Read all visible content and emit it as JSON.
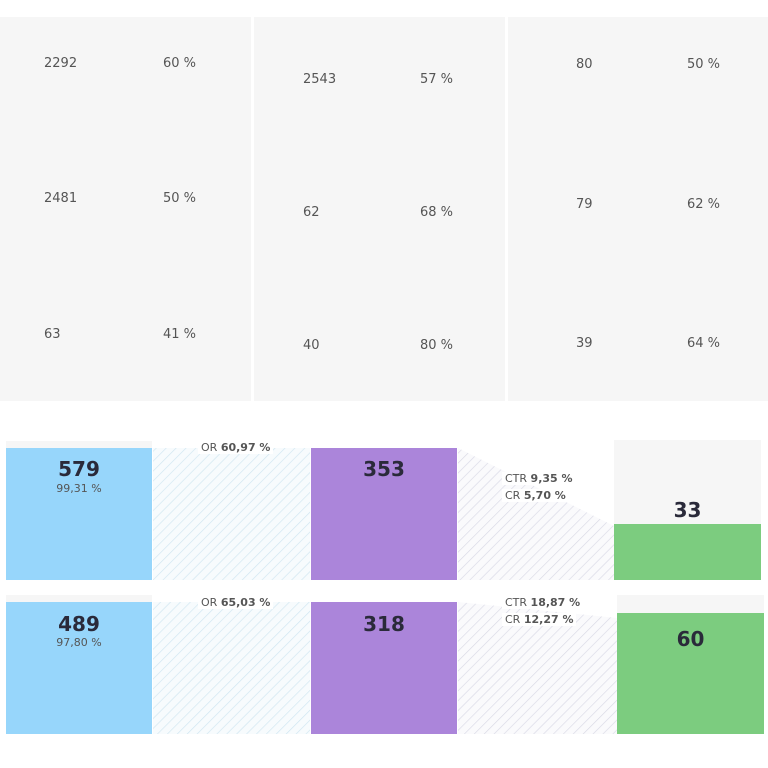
{
  "stats": {
    "columns": [
      {
        "rows": [
          {
            "value": "2292",
            "pct": "60 %"
          },
          {
            "value": "2481",
            "pct": "50 %"
          },
          {
            "value": "63",
            "pct": "41 %"
          }
        ]
      },
      {
        "rows": [
          {
            "value": "2543",
            "pct": "57 %"
          },
          {
            "value": "62",
            "pct": "68 %"
          },
          {
            "value": "40",
            "pct": "80 %"
          }
        ]
      },
      {
        "rows": [
          {
            "value": "80",
            "pct": "50 %"
          },
          {
            "value": "79",
            "pct": "62 %"
          },
          {
            "value": "39",
            "pct": "64 %"
          }
        ]
      }
    ]
  },
  "funnels": [
    {
      "stage1": {
        "value": "579",
        "sub": "99,31 %"
      },
      "or_label": "OR",
      "or_value": "60,97 %",
      "stage2": {
        "value": "353"
      },
      "ctr_label": "CTR",
      "ctr_value": "9,35 %",
      "cr_label": "CR",
      "cr_value": "5,70 %",
      "stage3": {
        "value": "33",
        "fill_fraction": 0.4
      }
    },
    {
      "stage1": {
        "value": "489",
        "sub": "97,80 %"
      },
      "or_label": "OR",
      "or_value": "65,03 %",
      "stage2": {
        "value": "318"
      },
      "ctr_label": "CTR",
      "ctr_value": "18,87 %",
      "cr_label": "CR",
      "cr_value": "12,27 %",
      "stage3": {
        "value": "60",
        "fill_fraction": 0.87
      }
    }
  ],
  "colors": {
    "stage1": "#97d6fb",
    "stage2": "#ab85da",
    "stage3": "#7ccc7f",
    "cell_bg": "#f6f6f6"
  }
}
